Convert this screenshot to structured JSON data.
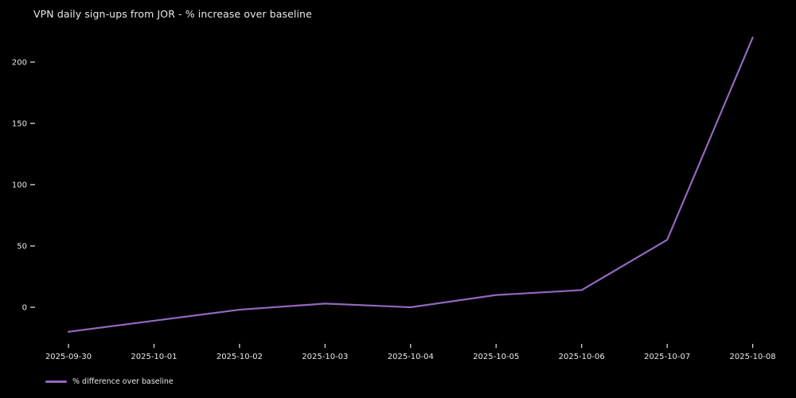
{
  "figure": {
    "title": "VPN daily sign-ups from JOR - % increase over baseline"
  },
  "chart_data": {
    "type": "line",
    "title": "VPN daily sign-ups from JOR - % increase over baseline",
    "x": [
      "2025-09-30",
      "2025-10-01",
      "2025-10-02",
      "2025-10-03",
      "2025-10-04",
      "2025-10-05",
      "2025-10-06",
      "2025-10-07",
      "2025-10-08"
    ],
    "series": [
      {
        "name": "% difference over baseline",
        "color": "#9467bd",
        "values": [
          -20,
          -11,
          -2,
          3,
          0,
          10,
          14,
          55,
          220
        ]
      }
    ],
    "yticks": [
      0,
      50,
      100,
      150,
      200
    ],
    "ylim": [
      -30,
      230
    ],
    "xlabel": "",
    "ylabel": "",
    "grid": false,
    "spines": false,
    "legend_position": "lower-left",
    "background_color": "#000000",
    "text_color": "#e8e8e8",
    "tick_color": "#d9d9d9"
  }
}
